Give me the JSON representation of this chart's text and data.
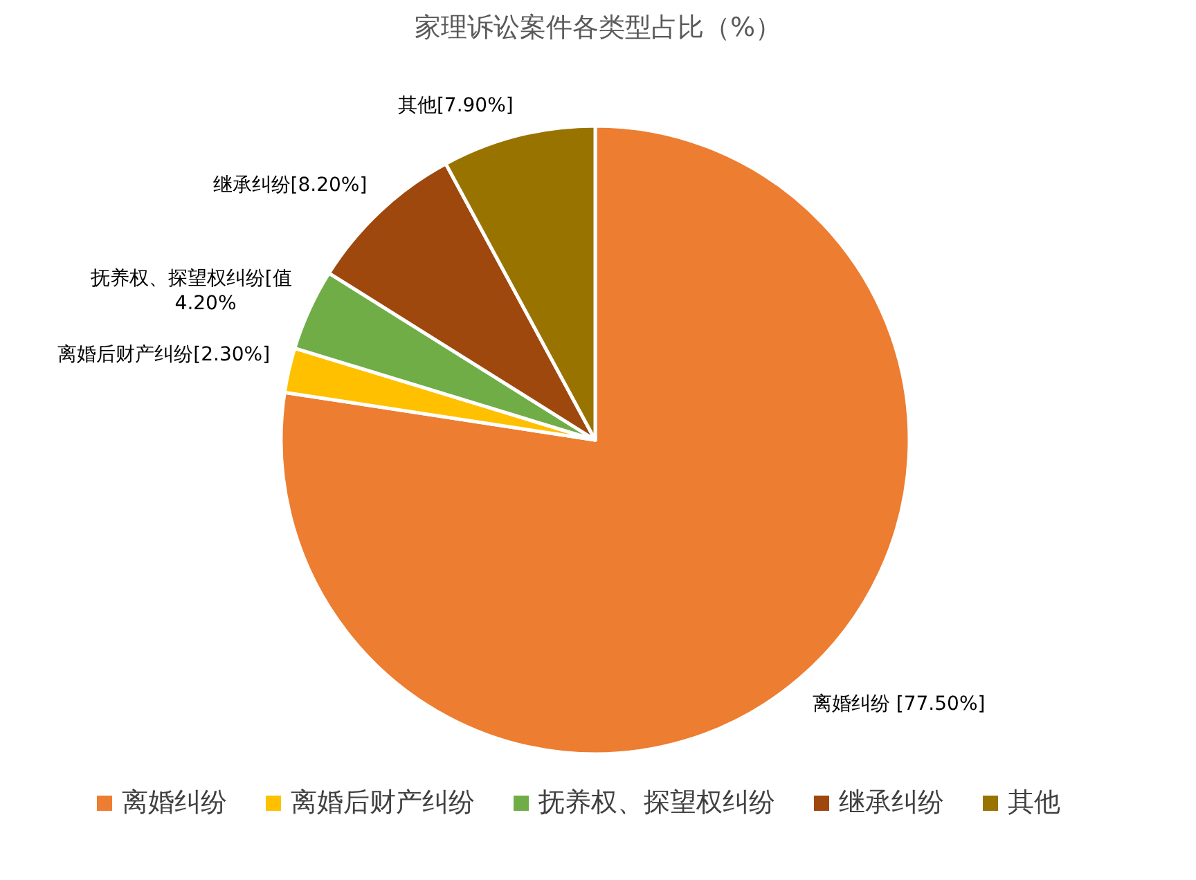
{
  "chart_data": {
    "type": "pie",
    "title": "家理诉讼案件各类型占比（%）",
    "categories": [
      "离婚纠纷",
      "离婚后财产纠纷",
      "抚养权、探望权纠纷",
      "继承纠纷",
      "其他"
    ],
    "values": [
      77.5,
      2.3,
      4.2,
      8.2,
      7.9
    ],
    "colors": [
      "#ed7d31",
      "#ffc000",
      "#70ad47",
      "#9e480e",
      "#997300"
    ],
    "value_labels": [
      "离婚纠纷 [77.50%]",
      "离婚后财产纠纷[2.30%]",
      "抚养权、探望权纠纷[值\n4.20%",
      "继承纠纷[8.20%]",
      "其他[7.90%]"
    ],
    "legend": "bottom"
  }
}
